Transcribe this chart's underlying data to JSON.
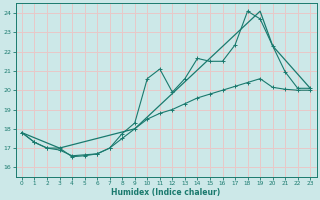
{
  "xlabel": "Humidex (Indice chaleur)",
  "bg_color": "#cce8e8",
  "grid_color": "#e8c8c8",
  "line_color": "#1a7a6e",
  "xlim": [
    -0.5,
    23.5
  ],
  "ylim": [
    15.5,
    24.5
  ],
  "yticks": [
    16,
    17,
    18,
    19,
    20,
    21,
    22,
    23,
    24
  ],
  "xticks": [
    0,
    1,
    2,
    3,
    4,
    5,
    6,
    7,
    8,
    9,
    10,
    11,
    12,
    13,
    14,
    15,
    16,
    17,
    18,
    19,
    20,
    21,
    22,
    23
  ],
  "line1_x": [
    0,
    1,
    2,
    3,
    4,
    5,
    6,
    7,
    8,
    9,
    10,
    11,
    12,
    13,
    14,
    15,
    16,
    17,
    18,
    19,
    20,
    21,
    22,
    23
  ],
  "line1_y": [
    17.8,
    17.3,
    17.0,
    16.9,
    16.6,
    16.65,
    16.7,
    17.0,
    17.5,
    18.0,
    18.5,
    18.8,
    19.0,
    19.3,
    19.6,
    19.8,
    20.0,
    20.2,
    20.4,
    20.6,
    20.15,
    20.05,
    20.0,
    20.0
  ],
  "line2_x": [
    0,
    1,
    2,
    3,
    4,
    5,
    6,
    7,
    8,
    9,
    10,
    11,
    12,
    13,
    14,
    15,
    16,
    17,
    18,
    19,
    20,
    21,
    22,
    23
  ],
  "line2_y": [
    17.8,
    17.3,
    17.0,
    17.0,
    16.55,
    16.6,
    16.7,
    17.0,
    17.75,
    18.3,
    20.6,
    21.1,
    19.9,
    20.6,
    21.65,
    21.5,
    21.5,
    22.35,
    24.1,
    23.7,
    22.3,
    20.95,
    20.1,
    20.1
  ],
  "line3_x": [
    0,
    3,
    9,
    19,
    20,
    23
  ],
  "line3_y": [
    17.8,
    17.0,
    18.0,
    24.1,
    22.3,
    20.1
  ]
}
